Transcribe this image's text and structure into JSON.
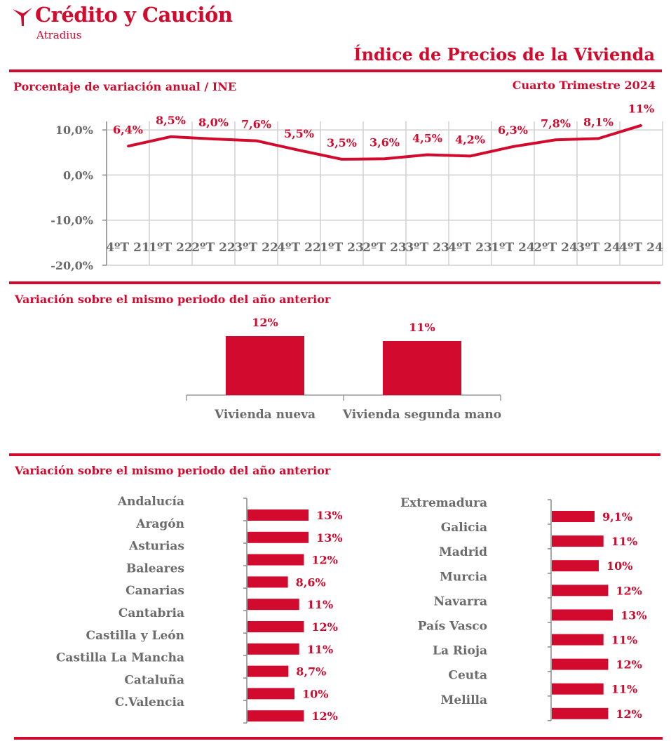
{
  "header": {
    "brand": "Crédito y Caución",
    "brand_sub": "Atradius",
    "title": "Índice de Precios de la Vivienda",
    "subtitle_left": "Porcentaje de variación anual / INE",
    "subtitle_right": "Cuarto Trimestre 2024"
  },
  "colors": {
    "accent": "#d20a2e",
    "label_gray": "#6b6b6b",
    "grid": "#d0d0d0"
  },
  "sections": {
    "bar_title": "Variación sobre el mismo periodo del año anterior",
    "regions_title": "Variación sobre el mismo periodo del año anterior"
  },
  "chart_data": [
    {
      "type": "line",
      "categories": [
        "4ºT 21",
        "1ºT 22",
        "2ºT 22",
        "3ºT 22",
        "4ºT 22",
        "1ºT 23",
        "2ºT 23",
        "3ºT 23",
        "4ºT 23",
        "1ºT 24",
        "2ºT 24",
        "3ºT 24",
        "4ºT 24"
      ],
      "values": [
        6.4,
        8.5,
        8.0,
        7.6,
        5.5,
        3.5,
        3.6,
        4.5,
        4.2,
        6.3,
        7.8,
        8.1,
        11
      ],
      "data_labels": [
        "6,4%",
        "8,5%",
        "8,0%",
        "7,6%",
        "5,5%",
        "3,5%",
        "3,6%",
        "4,5%",
        "4,2%",
        "6,3%",
        "7,8%",
        "8,1%",
        "11%"
      ],
      "y_ticks": [
        10,
        0,
        -10,
        -20
      ],
      "y_tick_labels": [
        "10,0%",
        "0,0%",
        "-10,0%",
        "-20,0%"
      ],
      "ylim": [
        -20,
        15
      ],
      "grid": true
    },
    {
      "type": "bar",
      "categories": [
        "Vivienda nueva",
        "Vivienda segunda mano"
      ],
      "values": [
        12,
        11
      ],
      "data_labels": [
        "12%",
        "11%"
      ]
    },
    {
      "type": "bar",
      "orientation": "horizontal",
      "categories": [
        "Andalucía",
        "Aragón",
        "Asturias",
        "Baleares",
        "Canarias",
        "Cantabria",
        "Castilla y León",
        "Castilla La Mancha",
        "Cataluña",
        "C.Valencia"
      ],
      "values": [
        13,
        13,
        12,
        8.6,
        11,
        12,
        11,
        8.7,
        10,
        12
      ],
      "data_labels": [
        "13%",
        "13%",
        "12%",
        "8,6%",
        "11%",
        "12%",
        "11%",
        "8,7%",
        "10%",
        "12%"
      ]
    },
    {
      "type": "bar",
      "orientation": "horizontal",
      "categories": [
        "Extremadura",
        "Galicia",
        "Madrid",
        "Murcia",
        "Navarra",
        "País Vasco",
        "La Rioja",
        "Ceuta",
        "Melilla"
      ],
      "values": [
        9.1,
        11,
        10,
        12,
        13,
        11,
        12,
        11,
        12
      ],
      "data_labels": [
        "9,1%",
        "11%",
        "10%",
        "12%",
        "13%",
        "11%",
        "12%",
        "11%",
        "12%"
      ]
    }
  ]
}
